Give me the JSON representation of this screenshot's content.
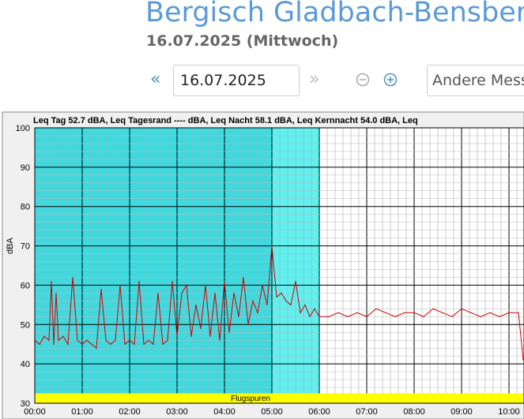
{
  "header": {
    "title": "Bergisch Gladbach-Bensberg",
    "subtitle": "16.07.2025 (Mittwoch)"
  },
  "controls": {
    "prev_label": "«",
    "next_label": "»",
    "date_value": "16.07.2025",
    "select_value": "Andere Mess"
  },
  "colors": {
    "accent": "#5b9bd5",
    "night_band": "#3ddbe0",
    "core_night_band": "#5ff0f0",
    "series": "#cc0000",
    "flight_band": "#ffff00"
  },
  "chart_data": {
    "type": "line",
    "info_line": "Leq Tag 52.7 dBA, Leq Tagesrand ---- dBA, Leq Nacht 58.1 dBA, Leq Kernnacht 54.0 dBA, Leq",
    "ylabel": "dBA",
    "ylim": [
      30,
      100
    ],
    "yticks": [
      "30",
      "40",
      "50",
      "60",
      "70",
      "80",
      "90",
      "100"
    ],
    "xticks": [
      "00:00",
      "01:00",
      "02:00",
      "03:00",
      "04:00",
      "05:00",
      "06:00",
      "07:00",
      "08:00",
      "09:00",
      "10:00"
    ],
    "xlim_hours": [
      0,
      10.3
    ],
    "band_label": "Flugspuren",
    "night_shading_hours": [
      0,
      6
    ],
    "series": [
      {
        "x": [
          0,
          0.1,
          0.2,
          0.3,
          0.35,
          0.4,
          0.45,
          0.5,
          0.6,
          0.7,
          0.8,
          0.9,
          1.0,
          1.1,
          1.2,
          1.3,
          1.4,
          1.5,
          1.6,
          1.7,
          1.8,
          1.9,
          2.0,
          2.1,
          2.2,
          2.3,
          2.4,
          2.5,
          2.6,
          2.7,
          2.8,
          2.9,
          3.0,
          3.1,
          3.2,
          3.3,
          3.4,
          3.5,
          3.6,
          3.7,
          3.8,
          3.9,
          4.0,
          4.1,
          4.2,
          4.3,
          4.4,
          4.5,
          4.6,
          4.7,
          4.8,
          4.9,
          5.0,
          5.1,
          5.2,
          5.3,
          5.4,
          5.5,
          5.6,
          5.7,
          5.8,
          5.9,
          6.0,
          6.2,
          6.4,
          6.6,
          6.8,
          7.0,
          7.2,
          7.4,
          7.6,
          7.8,
          8.0,
          8.2,
          8.4,
          8.6,
          8.8,
          9.0,
          9.2,
          9.4,
          9.6,
          9.8,
          10.0,
          10.2,
          10.3
        ],
        "y": [
          46,
          45,
          47,
          46,
          61,
          45,
          58,
          46,
          47,
          45,
          62,
          46,
          45,
          46,
          45,
          44,
          59,
          46,
          45,
          46,
          60,
          45,
          46,
          45,
          61,
          45,
          46,
          45,
          58,
          45,
          46,
          61,
          47,
          58,
          60,
          47,
          55,
          49,
          60,
          47,
          58,
          46,
          61,
          48,
          58,
          52,
          62,
          50,
          56,
          53,
          60,
          55,
          70,
          57,
          58,
          56,
          55,
          61,
          53,
          55,
          52,
          54,
          52,
          52,
          53,
          52,
          53,
          52,
          54,
          53,
          52,
          53,
          53,
          52,
          54,
          53,
          52,
          54,
          53,
          52,
          53,
          52,
          53,
          53,
          41
        ]
      }
    ]
  }
}
